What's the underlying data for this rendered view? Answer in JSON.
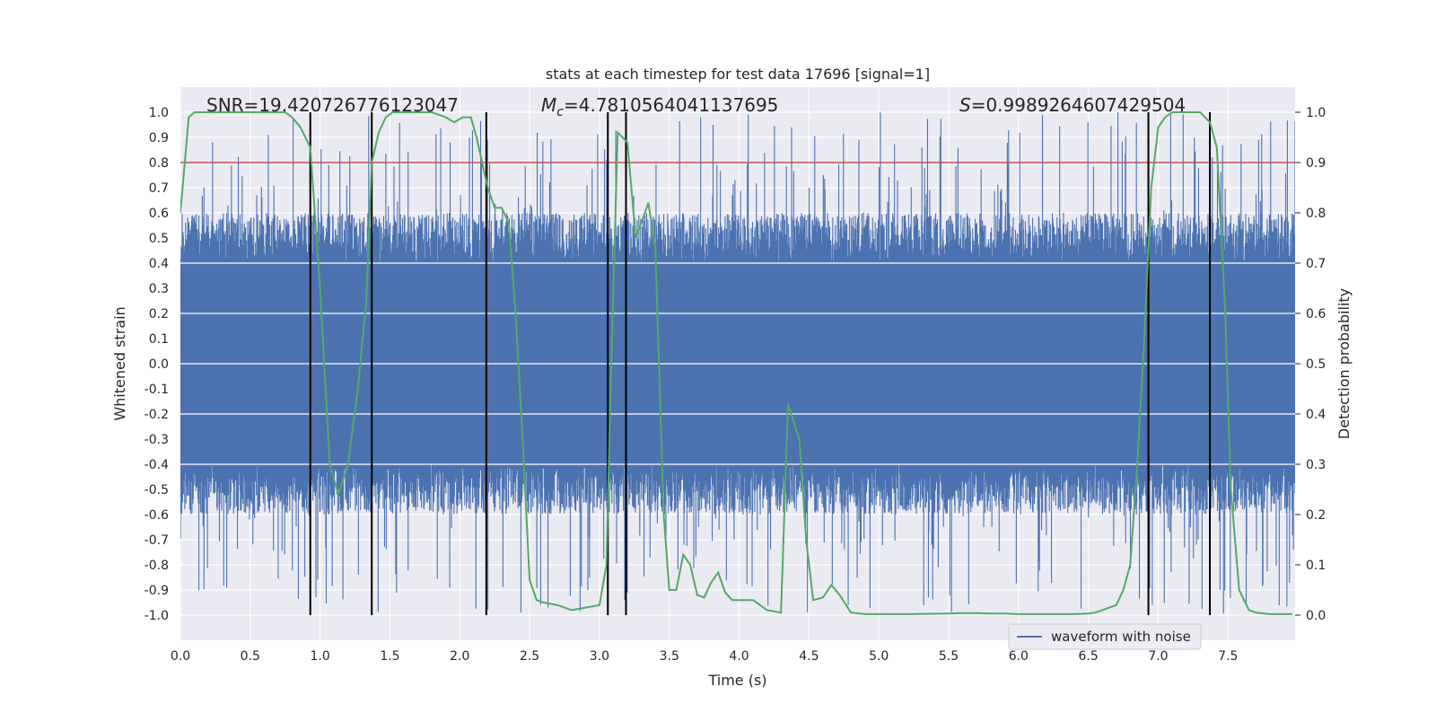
{
  "chart_data": {
    "type": "line",
    "title": "stats at each timestep for test data 17696 [signal=1]",
    "xlabel": "Time (s)",
    "ylabel_left": "Whitened strain",
    "ylabel_right": "Detection probability",
    "xlim": [
      0,
      7.98
    ],
    "ylim_left": [
      -1.1,
      1.1
    ],
    "ylim_right": [
      -0.05,
      1.05
    ],
    "grid": true,
    "x_ticks": [
      "0.0",
      "0.5",
      "1.0",
      "1.5",
      "2.0",
      "2.5",
      "3.0",
      "3.5",
      "4.0",
      "4.5",
      "5.0",
      "5.5",
      "6.0",
      "6.5",
      "7.0",
      "7.5"
    ],
    "y_left_ticks": [
      "1.0",
      "0.9",
      "0.8",
      "0.7",
      "0.6",
      "0.5",
      "0.4",
      "0.3",
      "0.2",
      "0.1",
      "0.0",
      "-0.1",
      "-0.2",
      "-0.3",
      "-0.4",
      "-0.5",
      "-0.6",
      "-0.7",
      "-0.8",
      "-0.9",
      "-1.0"
    ],
    "y_right_ticks": [
      "1.0",
      "0.9",
      "0.8",
      "0.7",
      "0.6",
      "0.5",
      "0.4",
      "0.3",
      "0.2",
      "0.1",
      "0.0"
    ],
    "annotations": {
      "snr": "SNR=19.420726776123047",
      "mc_symbol": "M",
      "mc_sub": "c",
      "mc_value": "=4.7810564041137695",
      "s_symbol": "S",
      "s_value": "=0.9989264607429504"
    },
    "threshold": {
      "value": 0.9,
      "axis": "right",
      "color": "#c44e52"
    },
    "vertical_lines": [
      0.93,
      1.37,
      2.19,
      3.06,
      3.19,
      6.93,
      7.37
    ],
    "legend": {
      "entries": [
        "waveform with noise"
      ],
      "placement": "lower-right"
    },
    "series": [
      {
        "name": "waveform with noise",
        "axis": "left",
        "color": "#4c72b0",
        "style": "noise-band",
        "envelope": {
          "core_abs": 0.4,
          "typical_peak": 0.6,
          "max_peak": 1.0,
          "min_peak": -1.0
        }
      },
      {
        "axis": "right",
        "color": "#55a868",
        "x": [
          0.0,
          0.06,
          0.1,
          0.2,
          0.3,
          0.4,
          0.5,
          0.6,
          0.7,
          0.75,
          0.8,
          0.86,
          0.93,
          1.0,
          1.07,
          1.13,
          1.2,
          1.27,
          1.33,
          1.37,
          1.42,
          1.47,
          1.52,
          1.6,
          1.7,
          1.8,
          1.9,
          1.96,
          2.02,
          2.08,
          2.12,
          2.16,
          2.2,
          2.25,
          2.3,
          2.35,
          2.4,
          2.45,
          2.5,
          2.55,
          2.6,
          2.7,
          2.8,
          2.9,
          3.0,
          3.05,
          3.08,
          3.13,
          3.2,
          3.26,
          3.3,
          3.35,
          3.4,
          3.46,
          3.5,
          3.55,
          3.6,
          3.65,
          3.7,
          3.75,
          3.8,
          3.85,
          3.9,
          3.95,
          4.0,
          4.05,
          4.1,
          4.2,
          4.3,
          4.35,
          4.43,
          4.48,
          4.53,
          4.6,
          4.66,
          4.72,
          4.8,
          4.9,
          5.0,
          5.2,
          5.5,
          5.6,
          5.7,
          5.8,
          5.9,
          6.0,
          6.1,
          6.2,
          6.3,
          6.4,
          6.5,
          6.55,
          6.6,
          6.65,
          6.7,
          6.75,
          6.8,
          6.85,
          6.9,
          6.95,
          7.0,
          7.05,
          7.1,
          7.2,
          7.3,
          7.37,
          7.42,
          7.48,
          7.52,
          7.58,
          7.65,
          7.7,
          7.8,
          7.9,
          7.96
        ],
        "y": [
          0.8,
          0.99,
          1.0,
          1.0,
          1.0,
          1.0,
          1.0,
          1.0,
          1.0,
          1.0,
          0.99,
          0.97,
          0.93,
          0.65,
          0.3,
          0.24,
          0.3,
          0.45,
          0.62,
          0.9,
          0.96,
          0.99,
          1.0,
          1.0,
          1.0,
          1.0,
          0.99,
          0.98,
          0.99,
          0.99,
          0.95,
          0.9,
          0.85,
          0.81,
          0.81,
          0.78,
          0.6,
          0.35,
          0.07,
          0.03,
          0.025,
          0.02,
          0.01,
          0.015,
          0.02,
          0.1,
          0.45,
          0.96,
          0.94,
          0.75,
          0.78,
          0.82,
          0.73,
          0.2,
          0.05,
          0.05,
          0.12,
          0.1,
          0.04,
          0.035,
          0.065,
          0.085,
          0.045,
          0.03,
          0.03,
          0.03,
          0.03,
          0.01,
          0.005,
          0.42,
          0.35,
          0.15,
          0.03,
          0.035,
          0.06,
          0.04,
          0.005,
          0.002,
          0.002,
          0.002,
          0.003,
          0.004,
          0.004,
          0.003,
          0.003,
          0.002,
          0.002,
          0.002,
          0.002,
          0.002,
          0.003,
          0.005,
          0.01,
          0.015,
          0.02,
          0.05,
          0.1,
          0.3,
          0.55,
          0.85,
          0.97,
          0.99,
          1.0,
          1.0,
          1.0,
          0.98,
          0.93,
          0.6,
          0.25,
          0.05,
          0.01,
          0.005,
          0.002,
          0.002,
          0.002
        ]
      }
    ]
  }
}
